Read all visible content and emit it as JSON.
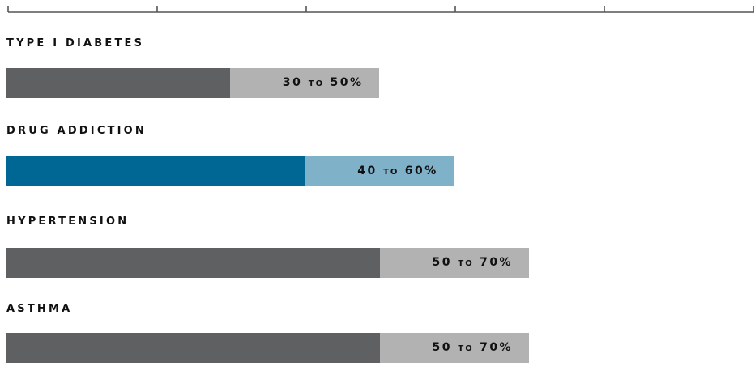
{
  "chart_data": {
    "type": "bar",
    "orientation": "horizontal",
    "stacked_range": true,
    "categories": [
      "TYPE I DIABETES",
      "DRUG ADDICTION",
      "HYPERTENSION",
      "ASTHMA"
    ],
    "series": [
      {
        "values": [
          30,
          40,
          50,
          50
        ]
      },
      {
        "values": [
          50,
          60,
          70,
          70
        ]
      }
    ],
    "range_labels": [
      {
        "low": "30",
        "to": "TO",
        "high": "50%"
      },
      {
        "low": "40",
        "to": "TO",
        "high": "60%"
      },
      {
        "low": "50",
        "to": "TO",
        "high": "70%"
      },
      {
        "low": "50",
        "to": "TO",
        "high": "70%"
      }
    ],
    "highlight_index": 1,
    "xlim": [
      0,
      100
    ],
    "x_ticks": [
      0,
      20,
      40,
      60,
      80,
      100
    ],
    "grid": false,
    "colors": {
      "low_default": "#5f6062",
      "range_default": "#b2b2b2",
      "low_highlight": "#006694",
      "range_highlight": "#7fb1c9",
      "axis": "#555555"
    }
  }
}
